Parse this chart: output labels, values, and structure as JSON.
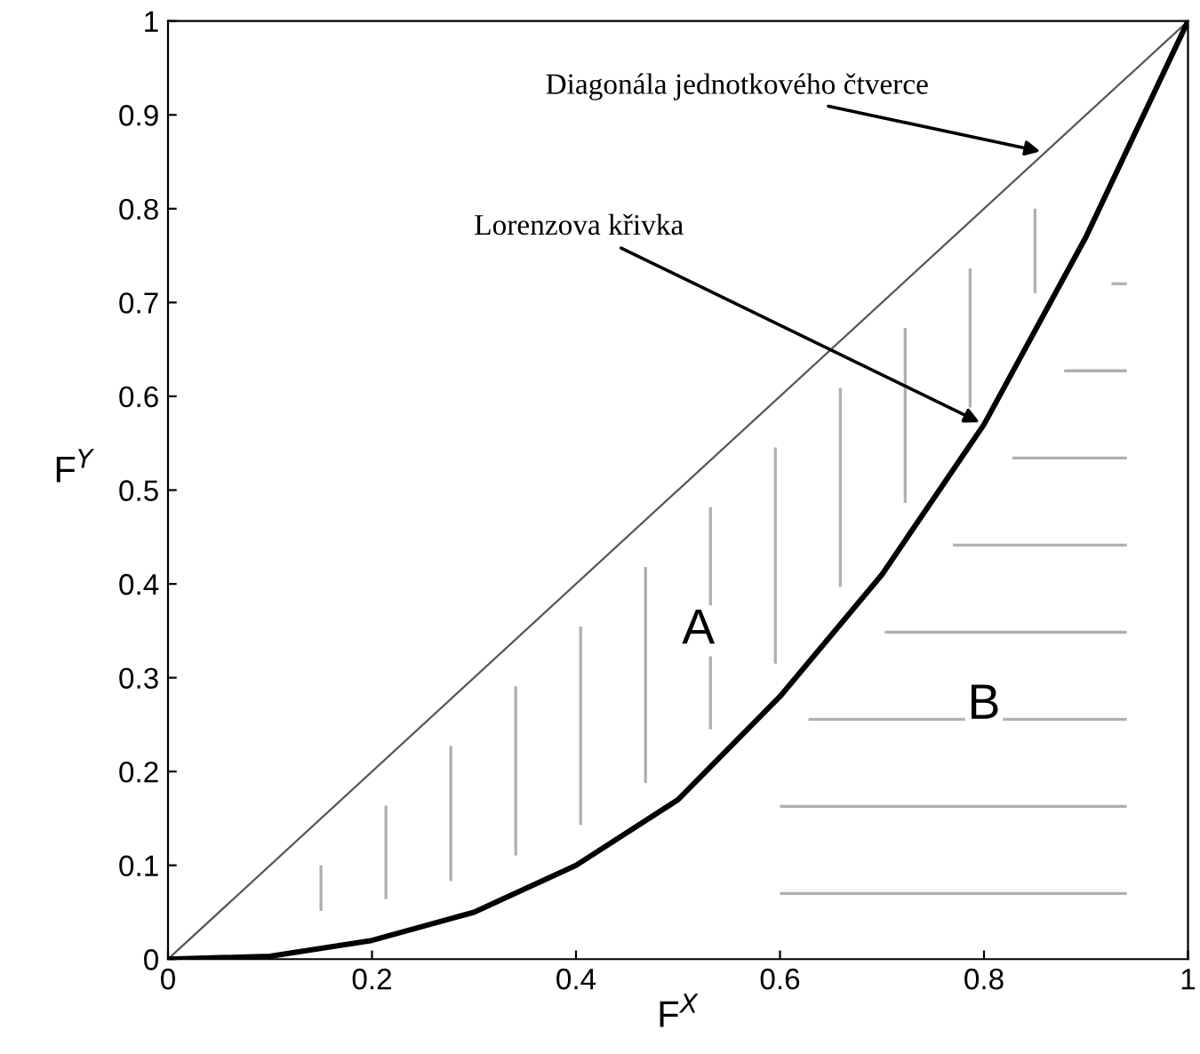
{
  "chart_data": {
    "type": "line",
    "xlabel": "F$^{X}$",
    "ylabel": "F$^{Y}$",
    "series": [
      {
        "color": "#555555",
        "x": [
          0,
          1
        ],
        "values": [
          0,
          1
        ],
        "line_style": "solid"
      },
      {
        "color": "#000000",
        "x": [
          0,
          0.1,
          0.2,
          0.3,
          0.4,
          0.5,
          0.6,
          0.7,
          0.8,
          0.9,
          1
        ],
        "values": [
          0,
          0.003,
          0.02,
          0.05,
          0.1,
          0.17,
          0.28,
          0.41,
          0.57,
          0.77,
          1
        ],
        "line_style": "solid"
      }
    ],
    "xlim": [
      0,
      1
    ],
    "ylim": [
      0,
      1
    ],
    "xticks": [
      0,
      0.2,
      0.4,
      0.6,
      0.8,
      1
    ],
    "yticks": [
      0,
      0.1,
      0.2,
      0.3,
      0.4,
      0.5,
      0.6,
      0.7,
      0.8,
      0.9,
      1
    ],
    "grid": false,
    "legend": false,
    "marker": "none",
    "annotations": [
      {
        "text": "Diagonála jednotkového čtverce",
        "x": 0.86,
        "y": 0.86
      },
      {
        "text": "Lorenzova křivka",
        "x": 0.8,
        "y": 0.57
      },
      "A",
      "B"
    ]
  }
}
